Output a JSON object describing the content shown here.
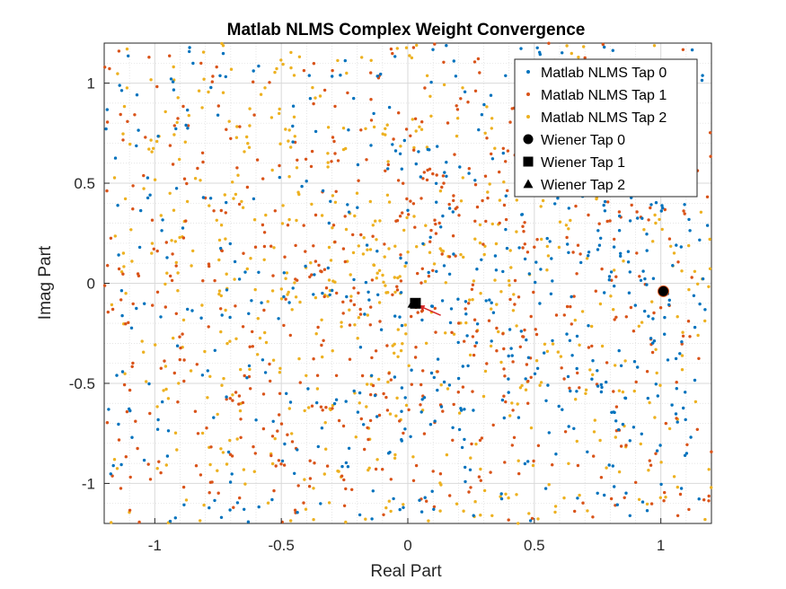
{
  "chart_data": {
    "type": "scatter",
    "title": "Matlab NLMS Complex Weight Convergence",
    "xlabel": "Real Part",
    "ylabel": "Imag Part",
    "xlim": [
      -1.2,
      1.2
    ],
    "ylim": [
      -1.2,
      1.2
    ],
    "xticks": [
      -1,
      -0.5,
      0,
      0.5,
      1
    ],
    "xtick_labels": [
      "-1",
      "-0.5",
      "0",
      "0.5",
      "1"
    ],
    "yticks": [
      -1,
      -0.5,
      0,
      0.5,
      1
    ],
    "ytick_labels": [
      "-1",
      "-0.5",
      "0",
      "0.5",
      "1"
    ],
    "grid": true,
    "minor_grid": true,
    "legend_position": "top-right",
    "series": [
      {
        "name": "Matlab NLMS Tap 0",
        "marker": "dot",
        "color": "#0072BD",
        "x_range": [
          -1.2,
          1.2
        ],
        "y_range": [
          -1.2,
          1.2
        ],
        "count": 550,
        "cluster_center": [
          0.55,
          -0.1
        ]
      },
      {
        "name": "Matlab NLMS Tap 1",
        "marker": "dot",
        "color": "#D95319",
        "x_range": [
          -1.2,
          1.2
        ],
        "y_range": [
          -1.2,
          1.2
        ],
        "count": 650,
        "cluster_center": [
          0.0,
          0.0
        ]
      },
      {
        "name": "Matlab NLMS Tap 2",
        "marker": "dot",
        "color": "#EDB120",
        "x_range": [
          -1.2,
          1.2
        ],
        "y_range": [
          -1.2,
          1.2
        ],
        "count": 650,
        "cluster_center": [
          -0.3,
          0.05
        ]
      },
      {
        "name": "Wiener Tap 0",
        "marker": "circle",
        "color": "#000000",
        "points": [
          [
            1.01,
            -0.04
          ]
        ]
      },
      {
        "name": "Wiener Tap 1",
        "marker": "square",
        "color": "#000000",
        "points": [
          [
            0.03,
            -0.1
          ]
        ]
      },
      {
        "name": "Wiener Tap 2",
        "marker": "triangle",
        "color": "#000000",
        "points": [
          [
            0.02,
            -0.1
          ]
        ]
      }
    ],
    "annotation_arrow": {
      "from": [
        0.13,
        -0.16
      ],
      "to": [
        0.04,
        -0.11
      ],
      "color": "#D62728"
    }
  }
}
